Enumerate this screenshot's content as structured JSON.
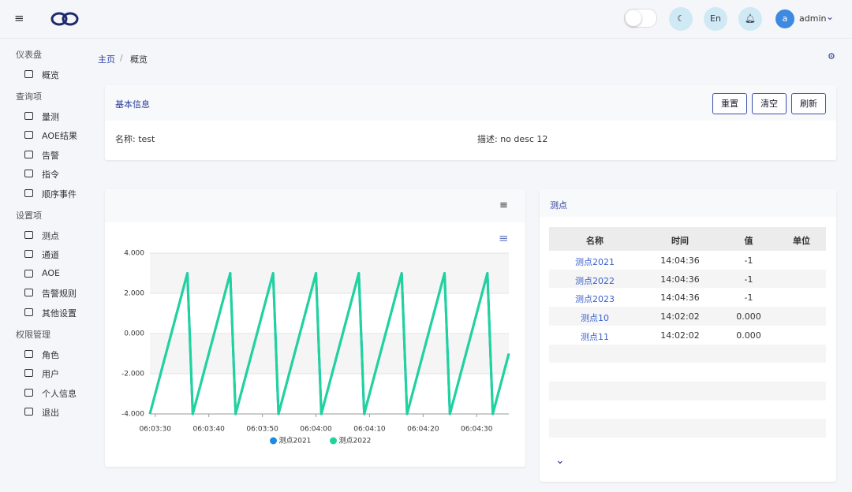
{
  "header": {
    "lang": "En",
    "avatar": "a",
    "user": "admin"
  },
  "sidebar": [
    {
      "group": "仪表盘",
      "items": [
        "概览"
      ]
    },
    {
      "group": "查询项",
      "items": [
        "量测",
        "AOE结果",
        "告警",
        "指令",
        "顺序事件"
      ]
    },
    {
      "group": "设置项",
      "items": [
        "测点",
        "通道",
        "AOE",
        "告警规则",
        "其他设置"
      ]
    },
    {
      "group": "权限管理",
      "items": [
        "角色",
        "用户",
        "个人信息",
        "退出"
      ]
    }
  ],
  "breadcrumb": [
    "主页",
    "概览"
  ],
  "info": {
    "title": "基本信息",
    "buttons": [
      "重置",
      "清空",
      "刷新"
    ],
    "fields": [
      "名称: test",
      "描述: no desc 12"
    ]
  },
  "chart_data": {
    "type": "line",
    "x": [
      "06:03:29",
      "06:03:30",
      "06:03:31",
      "06:03:32",
      "06:03:33",
      "06:03:34",
      "06:03:35",
      "06:03:36",
      "06:03:37",
      "06:03:38",
      "06:03:39",
      "06:03:40",
      "06:03:41",
      "06:03:42",
      "06:03:43",
      "06:03:44",
      "06:03:45",
      "06:03:46",
      "06:03:47",
      "06:03:48",
      "06:03:49",
      "06:03:50",
      "06:03:51",
      "06:03:52",
      "06:03:53",
      "06:03:54",
      "06:03:55",
      "06:03:56",
      "06:03:57",
      "06:03:58",
      "06:03:59",
      "06:04:00",
      "06:04:01",
      "06:04:02",
      "06:04:03",
      "06:04:04",
      "06:04:05",
      "06:04:06",
      "06:04:07",
      "06:04:08",
      "06:04:09",
      "06:04:10",
      "06:04:11",
      "06:04:12",
      "06:04:13",
      "06:04:14",
      "06:04:15",
      "06:04:16",
      "06:04:17",
      "06:04:18",
      "06:04:19",
      "06:04:20",
      "06:04:21",
      "06:04:22",
      "06:04:23",
      "06:04:24",
      "06:04:25",
      "06:04:26",
      "06:04:27",
      "06:04:28",
      "06:04:29",
      "06:04:30",
      "06:04:31",
      "06:04:32",
      "06:04:33",
      "06:04:34",
      "06:04:35",
      "06:04:36"
    ],
    "series": [
      {
        "name": "测点2021",
        "color": "#1a8be6",
        "values": [
          -4,
          -3,
          -2,
          -1,
          0,
          1,
          2,
          3,
          -4,
          -3,
          -2,
          -1,
          0,
          1,
          2,
          3,
          -4,
          -3,
          -2,
          -1,
          0,
          1,
          2,
          3,
          -4,
          -3,
          -2,
          -1,
          0,
          1,
          2,
          3,
          -4,
          -3,
          -2,
          -1,
          0,
          1,
          2,
          3,
          -4,
          -3,
          -2,
          -1,
          0,
          1,
          2,
          3,
          -4,
          -3,
          -2,
          -1,
          0,
          1,
          2,
          3,
          -4,
          -3,
          -2,
          -1,
          0,
          1,
          2,
          3,
          -4,
          -3,
          -2,
          -1
        ]
      },
      {
        "name": "测点2022",
        "color": "#1fd49c",
        "values": [
          -4,
          -3,
          -2,
          -1,
          0,
          1,
          2,
          3,
          -4,
          -3,
          -2,
          -1,
          0,
          1,
          2,
          3,
          -4,
          -3,
          -2,
          -1,
          0,
          1,
          2,
          3,
          -4,
          -3,
          -2,
          -1,
          0,
          1,
          2,
          3,
          -4,
          -3,
          -2,
          -1,
          0,
          1,
          2,
          3,
          -4,
          -3,
          -2,
          -1,
          0,
          1,
          2,
          3,
          -4,
          -3,
          -2,
          -1,
          0,
          1,
          2,
          3,
          -4,
          -3,
          -2,
          -1,
          0,
          1,
          2,
          3,
          -4,
          -3,
          -2,
          -1
        ]
      }
    ],
    "xlim": [
      "06:03:29",
      "06:04:36"
    ],
    "xticks": [
      "06:03:30",
      "06:03:40",
      "06:03:50",
      "06:04:00",
      "06:04:10",
      "06:04:20",
      "06:04:30"
    ],
    "ylim": [
      -4,
      4
    ],
    "yticks": [
      {
        "value": -4,
        "label": "-4.000"
      },
      {
        "value": -2,
        "label": "-2.000"
      },
      {
        "value": 0,
        "label": "0.000"
      },
      {
        "value": 2,
        "label": "2.000"
      },
      {
        "value": 4,
        "label": "4.000"
      }
    ],
    "grid": true,
    "legend": "bottom"
  },
  "points_table": {
    "title": "测点",
    "columns": [
      "名称",
      "时间",
      "值",
      "单位"
    ],
    "rows": [
      [
        "测点2021",
        "14:04:36",
        "-1",
        ""
      ],
      [
        "测点2022",
        "14:04:36",
        "-1",
        ""
      ],
      [
        "测点2023",
        "14:04:36",
        "-1",
        ""
      ],
      [
        "测点10",
        "14:02:02",
        "0.000",
        ""
      ],
      [
        "测点11",
        "14:02:02",
        "0.000",
        ""
      ]
    ]
  }
}
